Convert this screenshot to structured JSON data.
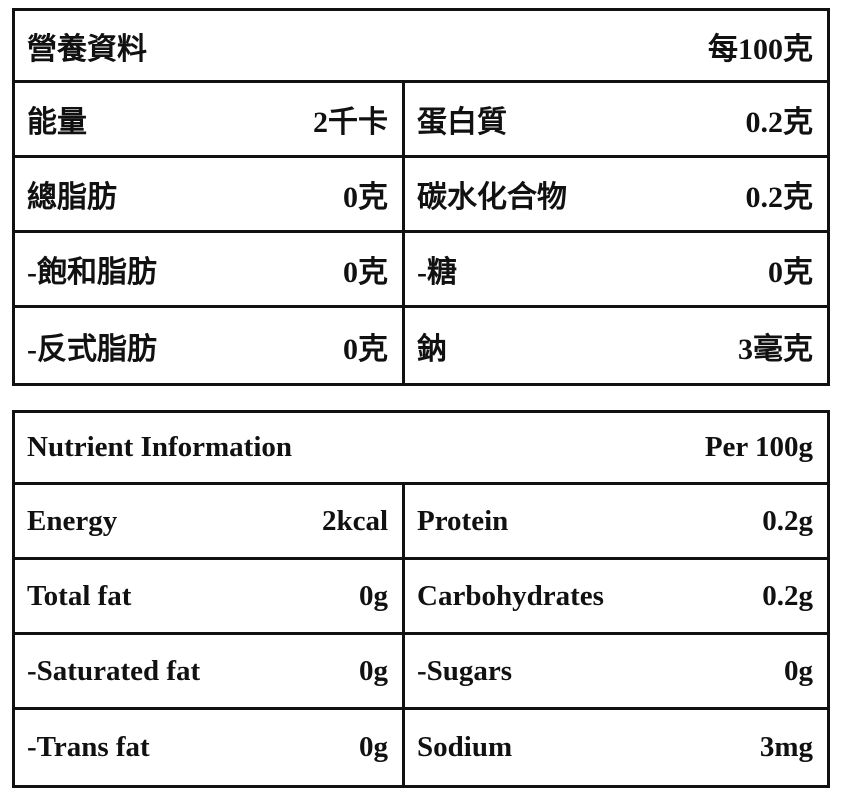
{
  "tables": [
    {
      "header": {
        "title": "營養資料",
        "per": "每100克"
      },
      "rows": [
        [
          "能量",
          "2千卡",
          "蛋白質",
          "0.2克"
        ],
        [
          "總脂肪",
          "0克",
          "碳水化合物",
          "0.2克"
        ],
        [
          "-飽和脂肪",
          "0克",
          "-糖",
          "0克"
        ],
        [
          "-反式脂肪",
          "0克",
          "鈉",
          "3毫克"
        ]
      ]
    },
    {
      "header": {
        "title": "Nutrient Information",
        "per": "Per 100g"
      },
      "rows": [
        [
          "Energy",
          "2kcal",
          "Protein",
          "0.2g"
        ],
        [
          "Total fat",
          "0g",
          "Carbohydrates",
          "0.2g"
        ],
        [
          "-Saturated fat",
          "0g",
          "-Sugars",
          "0g"
        ],
        [
          "-Trans fat",
          "0g",
          "Sodium",
          "3mg"
        ]
      ]
    }
  ]
}
